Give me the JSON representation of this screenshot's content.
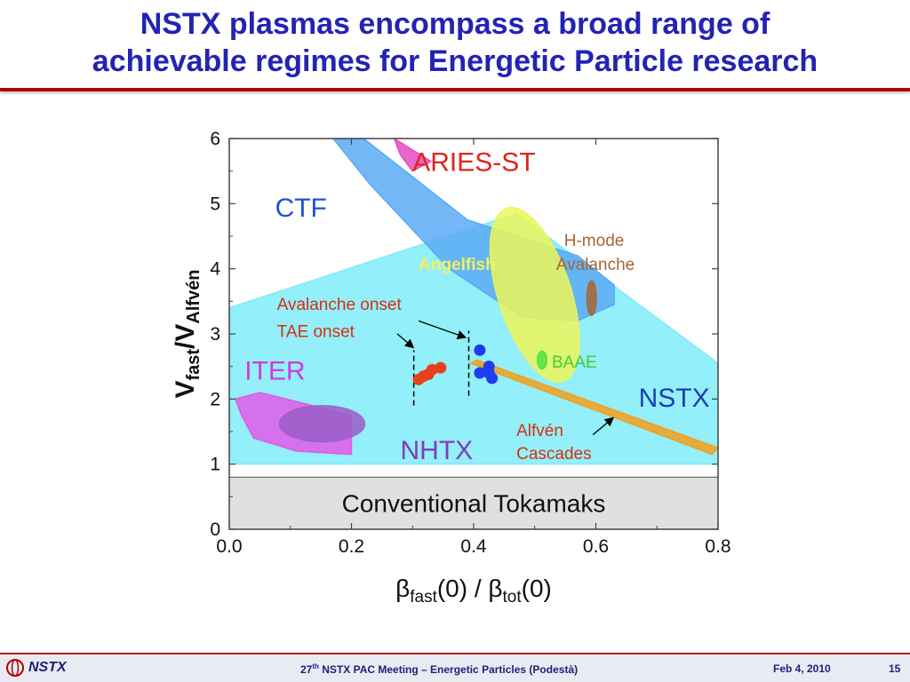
{
  "slide": {
    "title_line1": "NSTX plasmas encompass a broad range of",
    "title_line2": "achievable regimes for Energetic Particle research",
    "title_color": "#2323b4",
    "accent_color": "#b40000"
  },
  "footer": {
    "logo_text": "NSTX",
    "meeting_prefix": "27",
    "meeting_sup": "th",
    "meeting_rest": " NSTX PAC Meeting – Energetic Particles (Podestà)",
    "date": "Feb 4, 2010",
    "page": "15"
  },
  "chart_data": {
    "type": "area",
    "xlim": [
      0.0,
      0.8
    ],
    "ylim": [
      0,
      6
    ],
    "xticks": [
      "0.0",
      "0.2",
      "0.4",
      "0.6",
      "0.8"
    ],
    "yticks": [
      "0",
      "1",
      "2",
      "3",
      "4",
      "5",
      "6"
    ],
    "xlabel": "βfast(0) / βtot(0)",
    "ylabel": "Vfast/VAlfvén",
    "grid": false,
    "conventional_band": {
      "label": "Conventional Tokamaks",
      "y_range": [
        0,
        0.8
      ],
      "color": "#e0e0e0"
    },
    "regions": [
      {
        "label": "NSTX",
        "color": "#80ecf8",
        "label_color": "#1a3fae",
        "points": [
          [
            0.0,
            3.4
          ],
          [
            0.47,
            4.85
          ],
          [
            0.8,
            2.55
          ],
          [
            0.8,
            1.0
          ],
          [
            0.0,
            1.0
          ]
        ]
      },
      {
        "label": "CTF",
        "color": "#5aaaf4",
        "label_color": "#1f4fd8",
        "points": [
          [
            0.17,
            6.0
          ],
          [
            0.22,
            6.0
          ],
          [
            0.39,
            4.75
          ],
          [
            0.57,
            4.2
          ],
          [
            0.63,
            3.75
          ],
          [
            0.63,
            3.45
          ],
          [
            0.57,
            3.2
          ],
          [
            0.48,
            3.25
          ],
          [
            0.36,
            4.0
          ],
          [
            0.23,
            5.3
          ]
        ]
      },
      {
        "label": "ARIES-ST",
        "color": "#e44dc0",
        "label_color": "#e0241c",
        "points": [
          [
            0.27,
            6.0
          ],
          [
            0.33,
            5.65
          ],
          [
            0.3,
            5.5
          ],
          [
            0.28,
            5.75
          ]
        ]
      },
      {
        "label": "Angelfish",
        "color": "#ecf65a",
        "label_color": "#f0e030",
        "cx": 0.5,
        "cy": 3.6,
        "rx": 0.06,
        "ry": 1.4,
        "rotate": -18
      },
      {
        "label": "ITER",
        "color": "#e05ae8",
        "label_color": "#d03cd8",
        "points": [
          [
            0.01,
            2.0
          ],
          [
            0.05,
            2.1
          ],
          [
            0.2,
            1.75
          ],
          [
            0.2,
            1.15
          ],
          [
            0.11,
            1.2
          ],
          [
            0.04,
            1.4
          ],
          [
            0.02,
            1.75
          ]
        ]
      },
      {
        "label": "NHTX",
        "color": "#9a5ec8",
        "label_color": "#7e3cb8",
        "cx": 0.152,
        "cy": 1.62,
        "rx": 0.07,
        "ry": 0.28,
        "rotate": 0
      },
      {
        "label": "Alfvén Cascades",
        "color": "#f0a020",
        "label_color": "#d83010",
        "points": [
          [
            0.395,
            2.55
          ],
          [
            0.405,
            2.6
          ],
          [
            0.8,
            1.25
          ],
          [
            0.79,
            1.15
          ]
        ]
      },
      {
        "label": "BAAE",
        "color": "#50e040",
        "label_color": "#50d840",
        "cx": 0.512,
        "cy": 2.6,
        "rx": 0.008,
        "ry": 0.14,
        "rotate": 0
      },
      {
        "label": "H-mode Avalanche",
        "color": "#a86432",
        "label_color": "#a05a28",
        "cx": 0.593,
        "cy": 3.55,
        "rx": 0.008,
        "ry": 0.27,
        "rotate": 0
      }
    ],
    "series": [
      {
        "name": "TAE onset",
        "color": "#e8401c",
        "x": [
          0.31,
          0.318,
          0.326,
          0.332,
          0.346
        ],
        "y": [
          2.3,
          2.35,
          2.38,
          2.45,
          2.48
        ]
      },
      {
        "name": "Avalanche onset",
        "color": "#1e3cf0",
        "x": [
          0.41,
          0.41,
          0.425,
          0.425,
          0.43
        ],
        "y": [
          2.75,
          2.4,
          2.5,
          2.4,
          2.32
        ]
      }
    ],
    "dashed_lines": [
      {
        "x": 0.302,
        "y_range": [
          1.9,
          2.75
        ]
      },
      {
        "x": 0.392,
        "y_range": [
          2.05,
          3.05
        ]
      }
    ],
    "annotations": [
      {
        "text": "ARIES-ST",
        "x": 0.3,
        "y": 5.5,
        "color": "#e0241c",
        "size": 30
      },
      {
        "text": "CTF",
        "x": 0.075,
        "y": 4.8,
        "color": "#1f4fd8",
        "size": 30
      },
      {
        "text": "Angelfish",
        "x": 0.31,
        "y": 3.98,
        "color": "#f0f060",
        "size": 19,
        "bold": true
      },
      {
        "text": "H-mode",
        "x": 0.548,
        "y": 4.35,
        "color": "#a86432",
        "size": 19
      },
      {
        "text": "Avalanche",
        "x": 0.535,
        "y": 3.98,
        "color": "#a86432",
        "size": 19
      },
      {
        "text": "Avalanche onset",
        "x": 0.078,
        "y": 3.37,
        "color": "#d83010",
        "size": 19
      },
      {
        "text": "TAE onset",
        "x": 0.078,
        "y": 2.95,
        "color": "#d83010",
        "size": 19
      },
      {
        "text": "ITER",
        "x": 0.025,
        "y": 2.3,
        "color": "#d03cd8",
        "size": 30
      },
      {
        "text": "BAAE",
        "x": 0.528,
        "y": 2.48,
        "color": "#40d030",
        "size": 19
      },
      {
        "text": "NSTX",
        "x": 0.67,
        "y": 1.88,
        "color": "#1a3fae",
        "size": 30
      },
      {
        "text": "NHTX",
        "x": 0.28,
        "y": 1.08,
        "color": "#7e3cb8",
        "size": 30
      },
      {
        "text": "Alfvén",
        "x": 0.47,
        "y": 1.43,
        "color": "#d83010",
        "size": 19
      },
      {
        "text": "Cascades",
        "x": 0.47,
        "y": 1.08,
        "color": "#d83010",
        "size": 19
      }
    ],
    "arrows": [
      {
        "from": [
          0.275,
          3.0
        ],
        "to": [
          0.3,
          2.8
        ]
      },
      {
        "from": [
          0.31,
          3.2
        ],
        "to": [
          0.385,
          2.95
        ]
      },
      {
        "from": [
          0.595,
          1.45
        ],
        "to": [
          0.627,
          1.7
        ]
      }
    ]
  }
}
